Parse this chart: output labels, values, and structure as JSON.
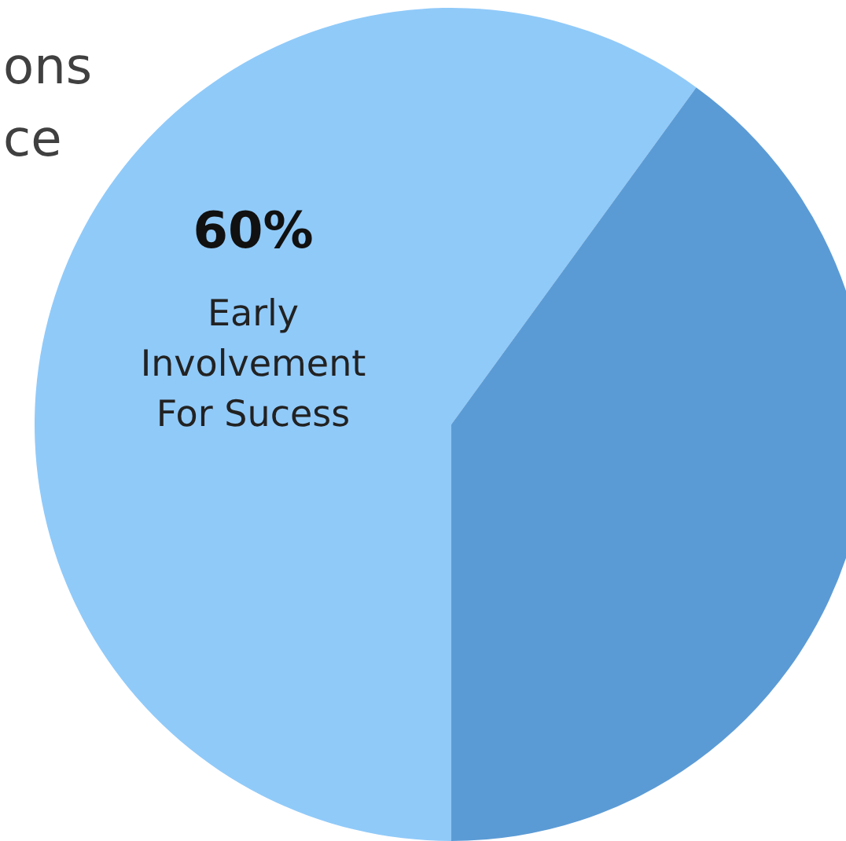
{
  "chart_data": {
    "type": "pie",
    "categories": [
      "Early Involvement For Sucess",
      null
    ],
    "values": [
      60,
      40
    ],
    "colors": [
      "#90caf9",
      "#5b9bd5"
    ],
    "value_labels": [
      "60%",
      null
    ],
    "annotations": [
      "ons",
      "ce"
    ],
    "legend": false
  }
}
